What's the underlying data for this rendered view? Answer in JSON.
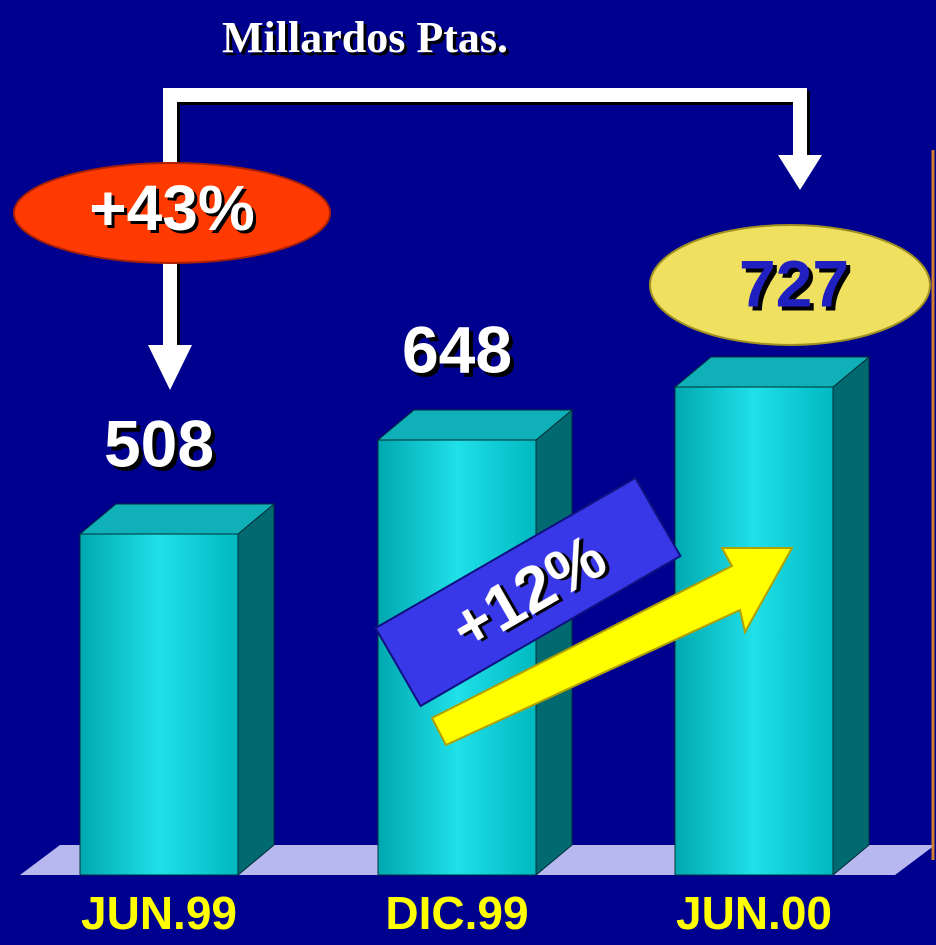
{
  "chart_data": {
    "type": "bar",
    "title": "Millardos Ptas.",
    "categories": [
      "JUN.99",
      "DIC.99",
      "JUN.00"
    ],
    "values": [
      508,
      648,
      727
    ],
    "color": "#00c4c8",
    "annotations": [
      "+43%",
      "+12%"
    ]
  }
}
